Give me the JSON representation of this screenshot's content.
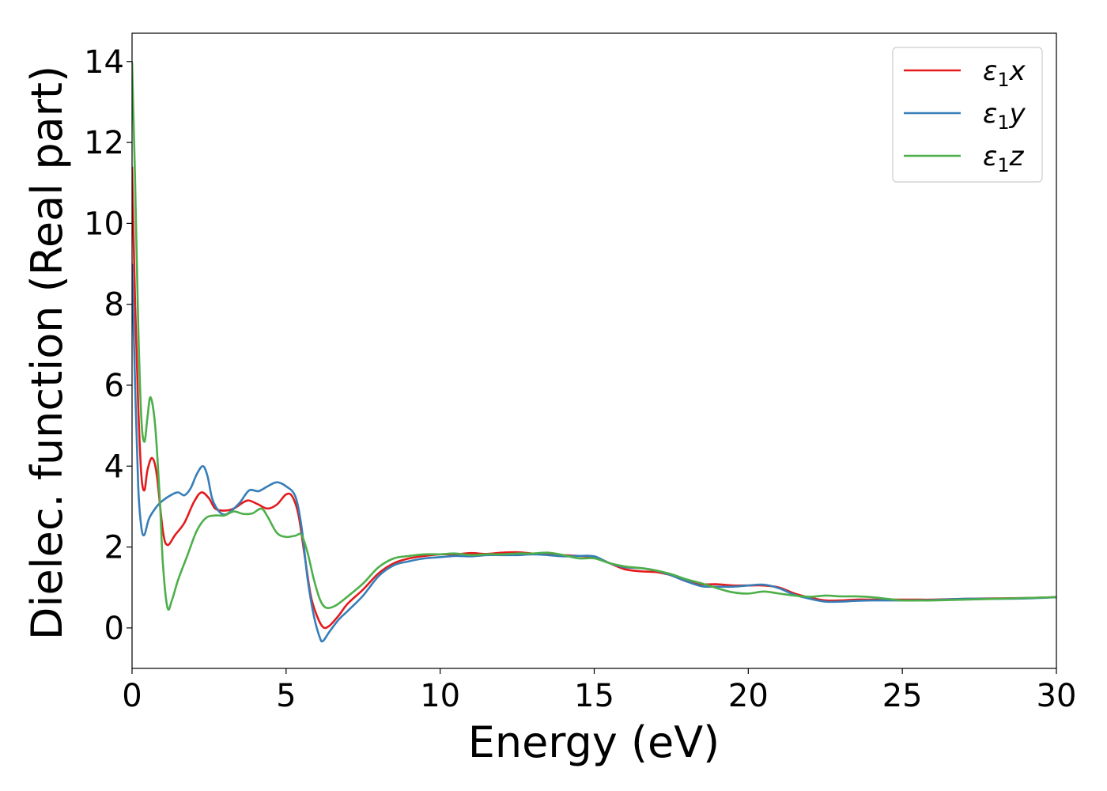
{
  "chart_data": {
    "type": "line",
    "xlabel": "Energy (eV)",
    "ylabel": "Dielec. function (Real part)",
    "xlim": [
      0,
      30
    ],
    "ylim": [
      -1,
      14.7
    ],
    "x_ticks": [
      0,
      5,
      10,
      15,
      20,
      25,
      30
    ],
    "y_ticks": [
      0,
      2,
      4,
      6,
      8,
      10,
      12,
      14
    ],
    "grid": false,
    "legend_position": "top-right",
    "series": [
      {
        "name": "ε₁x",
        "legend_main": "ε",
        "legend_sub": "1",
        "legend_suffix": "x",
        "color": "#e41a1c",
        "points": [
          [
            0.0,
            11.4
          ],
          [
            0.1,
            8.0
          ],
          [
            0.2,
            5.5
          ],
          [
            0.3,
            3.8
          ],
          [
            0.4,
            3.4
          ],
          [
            0.5,
            3.9
          ],
          [
            0.65,
            4.2
          ],
          [
            0.8,
            3.8
          ],
          [
            1.0,
            2.4
          ],
          [
            1.15,
            2.05
          ],
          [
            1.4,
            2.3
          ],
          [
            1.7,
            2.6
          ],
          [
            2.0,
            3.1
          ],
          [
            2.25,
            3.35
          ],
          [
            2.5,
            3.2
          ],
          [
            2.7,
            2.95
          ],
          [
            3.0,
            2.9
          ],
          [
            3.3,
            2.95
          ],
          [
            3.6,
            3.1
          ],
          [
            3.8,
            3.15
          ],
          [
            4.1,
            3.05
          ],
          [
            4.4,
            2.95
          ],
          [
            4.7,
            3.05
          ],
          [
            5.0,
            3.3
          ],
          [
            5.2,
            3.25
          ],
          [
            5.4,
            2.8
          ],
          [
            5.6,
            1.8
          ],
          [
            5.8,
            0.8
          ],
          [
            6.0,
            0.3
          ],
          [
            6.2,
            0.02
          ],
          [
            6.4,
            0.05
          ],
          [
            6.7,
            0.3
          ],
          [
            7.0,
            0.6
          ],
          [
            7.5,
            0.95
          ],
          [
            8.0,
            1.35
          ],
          [
            8.5,
            1.6
          ],
          [
            9.0,
            1.72
          ],
          [
            9.5,
            1.78
          ],
          [
            10.0,
            1.82
          ],
          [
            10.5,
            1.82
          ],
          [
            11.0,
            1.85
          ],
          [
            11.5,
            1.83
          ],
          [
            12.0,
            1.86
          ],
          [
            12.5,
            1.87
          ],
          [
            13.0,
            1.84
          ],
          [
            13.5,
            1.82
          ],
          [
            14.0,
            1.8
          ],
          [
            14.5,
            1.78
          ],
          [
            15.0,
            1.75
          ],
          [
            15.5,
            1.6
          ],
          [
            16.0,
            1.45
          ],
          [
            16.5,
            1.4
          ],
          [
            17.0,
            1.38
          ],
          [
            17.5,
            1.3
          ],
          [
            18.0,
            1.15
          ],
          [
            18.5,
            1.08
          ],
          [
            19.0,
            1.08
          ],
          [
            19.5,
            1.05
          ],
          [
            20.0,
            1.05
          ],
          [
            20.5,
            1.05
          ],
          [
            21.0,
            1.0
          ],
          [
            21.5,
            0.85
          ],
          [
            22.0,
            0.75
          ],
          [
            22.5,
            0.68
          ],
          [
            23.0,
            0.68
          ],
          [
            23.5,
            0.7
          ],
          [
            24.0,
            0.7
          ],
          [
            24.5,
            0.7
          ],
          [
            25.0,
            0.7
          ],
          [
            25.5,
            0.7
          ],
          [
            26.0,
            0.7
          ],
          [
            27.0,
            0.72
          ],
          [
            28.0,
            0.73
          ],
          [
            29.0,
            0.74
          ],
          [
            30.0,
            0.76
          ]
        ]
      },
      {
        "name": "ε₁y",
        "legend_main": "ε",
        "legend_sub": "1",
        "legend_suffix": "y",
        "color": "#377eb8",
        "points": [
          [
            0.0,
            9.0
          ],
          [
            0.1,
            6.0
          ],
          [
            0.2,
            3.5
          ],
          [
            0.3,
            2.5
          ],
          [
            0.4,
            2.3
          ],
          [
            0.55,
            2.7
          ],
          [
            0.8,
            3.0
          ],
          [
            1.0,
            3.15
          ],
          [
            1.3,
            3.3
          ],
          [
            1.5,
            3.35
          ],
          [
            1.7,
            3.28
          ],
          [
            1.9,
            3.45
          ],
          [
            2.1,
            3.8
          ],
          [
            2.3,
            4.0
          ],
          [
            2.45,
            3.75
          ],
          [
            2.6,
            3.2
          ],
          [
            2.8,
            2.9
          ],
          [
            3.0,
            2.8
          ],
          [
            3.2,
            2.88
          ],
          [
            3.5,
            3.1
          ],
          [
            3.8,
            3.4
          ],
          [
            4.1,
            3.38
          ],
          [
            4.4,
            3.5
          ],
          [
            4.7,
            3.6
          ],
          [
            5.0,
            3.5
          ],
          [
            5.3,
            3.25
          ],
          [
            5.5,
            2.5
          ],
          [
            5.7,
            1.2
          ],
          [
            5.9,
            0.3
          ],
          [
            6.1,
            -0.25
          ],
          [
            6.2,
            -0.32
          ],
          [
            6.4,
            -0.1
          ],
          [
            6.7,
            0.2
          ],
          [
            7.0,
            0.42
          ],
          [
            7.5,
            0.8
          ],
          [
            8.0,
            1.28
          ],
          [
            8.5,
            1.55
          ],
          [
            9.0,
            1.65
          ],
          [
            9.5,
            1.72
          ],
          [
            10.0,
            1.75
          ],
          [
            10.5,
            1.78
          ],
          [
            11.0,
            1.77
          ],
          [
            11.5,
            1.8
          ],
          [
            12.0,
            1.8
          ],
          [
            12.5,
            1.8
          ],
          [
            13.0,
            1.82
          ],
          [
            13.5,
            1.8
          ],
          [
            14.0,
            1.77
          ],
          [
            14.5,
            1.78
          ],
          [
            15.0,
            1.77
          ],
          [
            15.5,
            1.6
          ],
          [
            16.0,
            1.5
          ],
          [
            16.5,
            1.48
          ],
          [
            17.0,
            1.42
          ],
          [
            17.5,
            1.3
          ],
          [
            18.0,
            1.15
          ],
          [
            18.5,
            1.03
          ],
          [
            19.0,
            1.02
          ],
          [
            19.5,
            1.02
          ],
          [
            20.0,
            1.05
          ],
          [
            20.5,
            1.07
          ],
          [
            21.0,
            0.98
          ],
          [
            21.5,
            0.82
          ],
          [
            22.0,
            0.72
          ],
          [
            22.5,
            0.65
          ],
          [
            23.0,
            0.65
          ],
          [
            23.5,
            0.67
          ],
          [
            24.0,
            0.68
          ],
          [
            24.5,
            0.68
          ],
          [
            25.0,
            0.68
          ],
          [
            26.0,
            0.69
          ],
          [
            27.0,
            0.72
          ],
          [
            28.0,
            0.72
          ],
          [
            29.0,
            0.73
          ],
          [
            30.0,
            0.76
          ]
        ]
      },
      {
        "name": "ε₁z",
        "legend_main": "ε",
        "legend_sub": "1",
        "legend_suffix": "z",
        "color": "#4daf4a",
        "points": [
          [
            0.0,
            14.0
          ],
          [
            0.1,
            11.0
          ],
          [
            0.2,
            7.5
          ],
          [
            0.3,
            5.2
          ],
          [
            0.4,
            4.6
          ],
          [
            0.5,
            5.2
          ],
          [
            0.6,
            5.7
          ],
          [
            0.75,
            5.0
          ],
          [
            0.9,
            3.2
          ],
          [
            1.0,
            1.6
          ],
          [
            1.15,
            0.5
          ],
          [
            1.3,
            0.7
          ],
          [
            1.5,
            1.2
          ],
          [
            1.8,
            1.8
          ],
          [
            2.1,
            2.4
          ],
          [
            2.4,
            2.72
          ],
          [
            2.7,
            2.78
          ],
          [
            3.0,
            2.78
          ],
          [
            3.3,
            2.88
          ],
          [
            3.6,
            2.82
          ],
          [
            3.9,
            2.83
          ],
          [
            4.2,
            2.95
          ],
          [
            4.4,
            2.75
          ],
          [
            4.7,
            2.35
          ],
          [
            5.0,
            2.25
          ],
          [
            5.3,
            2.28
          ],
          [
            5.5,
            2.3
          ],
          [
            5.7,
            1.85
          ],
          [
            5.9,
            1.2
          ],
          [
            6.1,
            0.7
          ],
          [
            6.3,
            0.5
          ],
          [
            6.6,
            0.55
          ],
          [
            7.0,
            0.78
          ],
          [
            7.5,
            1.1
          ],
          [
            8.0,
            1.5
          ],
          [
            8.5,
            1.72
          ],
          [
            9.0,
            1.78
          ],
          [
            9.5,
            1.82
          ],
          [
            10.0,
            1.82
          ],
          [
            10.5,
            1.84
          ],
          [
            11.0,
            1.8
          ],
          [
            11.5,
            1.82
          ],
          [
            12.0,
            1.82
          ],
          [
            12.5,
            1.84
          ],
          [
            13.0,
            1.84
          ],
          [
            13.5,
            1.86
          ],
          [
            14.0,
            1.8
          ],
          [
            14.5,
            1.72
          ],
          [
            15.0,
            1.72
          ],
          [
            15.5,
            1.6
          ],
          [
            16.0,
            1.52
          ],
          [
            16.5,
            1.48
          ],
          [
            17.0,
            1.42
          ],
          [
            17.5,
            1.33
          ],
          [
            18.0,
            1.2
          ],
          [
            18.5,
            1.1
          ],
          [
            19.0,
            0.98
          ],
          [
            19.5,
            0.88
          ],
          [
            20.0,
            0.85
          ],
          [
            20.5,
            0.9
          ],
          [
            21.0,
            0.85
          ],
          [
            21.5,
            0.8
          ],
          [
            22.0,
            0.77
          ],
          [
            22.5,
            0.8
          ],
          [
            23.0,
            0.78
          ],
          [
            23.5,
            0.78
          ],
          [
            24.0,
            0.76
          ],
          [
            24.5,
            0.72
          ],
          [
            25.0,
            0.68
          ],
          [
            25.5,
            0.68
          ],
          [
            26.0,
            0.68
          ],
          [
            27.0,
            0.7
          ],
          [
            28.0,
            0.72
          ],
          [
            29.0,
            0.74
          ],
          [
            30.0,
            0.76
          ]
        ]
      }
    ]
  }
}
